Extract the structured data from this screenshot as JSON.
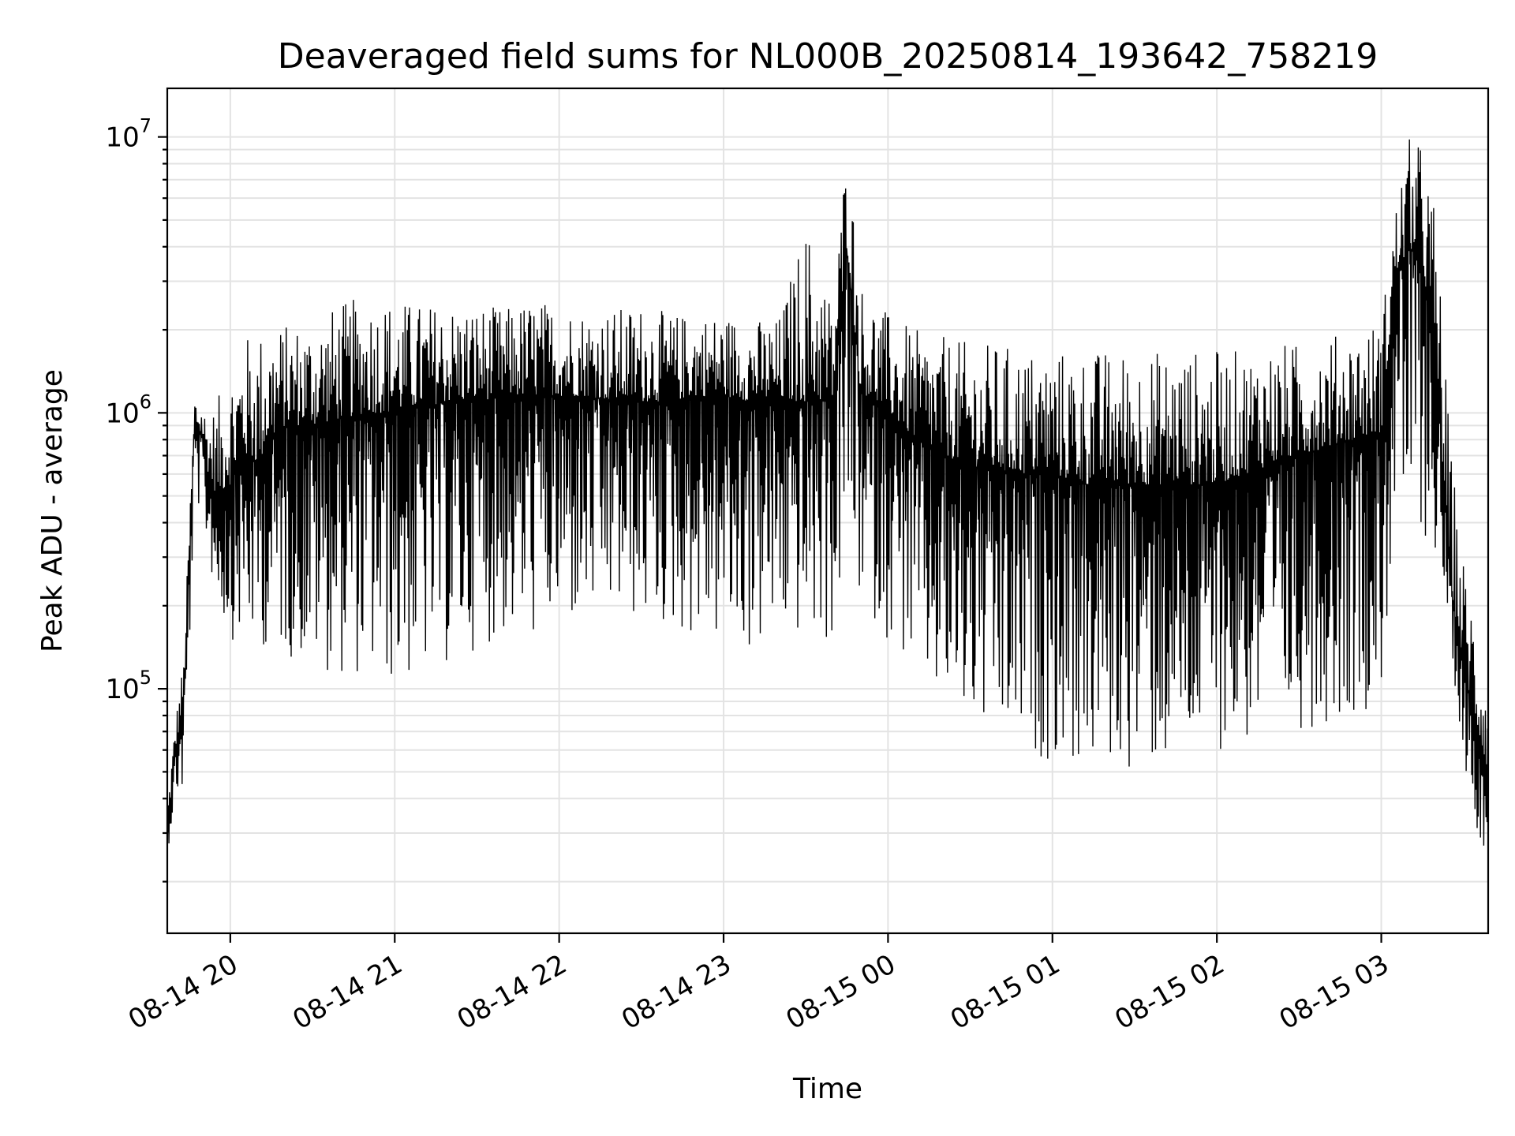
{
  "chart_data": {
    "type": "line",
    "title": "Deaveraged field sums for NL000B_20250814_193642_758219",
    "xlabel": "Time",
    "ylabel": "Peak ADU - average",
    "yscale": "log",
    "ylim": [
      13000,
      15000000
    ],
    "xlim": [
      "08-14 19:37",
      "08-15 03:39"
    ],
    "grid": true,
    "x_tick_labels": [
      "08-14 20",
      "08-14 21",
      "08-14 22",
      "08-14 23",
      "08-15 00",
      "08-15 01",
      "08-15 02",
      "08-15 03"
    ],
    "x_tick_values": [
      "08-14 20:00",
      "08-14 21:00",
      "08-14 22:00",
      "08-14 23:00",
      "08-15 00:00",
      "08-15 01:00",
      "08-15 02:00",
      "08-15 03:00"
    ],
    "y_ticks": [
      {
        "value": 100000,
        "base": "10",
        "exp": "5"
      },
      {
        "value": 1000000,
        "base": "10",
        "exp": "6"
      },
      {
        "value": 10000000,
        "base": "10",
        "exp": "7"
      }
    ],
    "series": [
      {
        "color": "#000000",
        "x": [
          "08-14 19:37",
          "08-14 19:40",
          "08-14 19:43",
          "08-14 19:45",
          "08-14 19:47",
          "08-14 19:50",
          "08-14 19:52",
          "08-14 19:55",
          "08-14 20:00",
          "08-14 20:05",
          "08-14 20:10",
          "08-14 20:15",
          "08-14 20:20",
          "08-14 20:30",
          "08-14 20:40",
          "08-14 20:50",
          "08-14 21:00",
          "08-14 21:10",
          "08-14 21:20",
          "08-14 21:30",
          "08-14 21:40",
          "08-14 21:50",
          "08-14 22:00",
          "08-14 22:10",
          "08-14 22:20",
          "08-14 22:30",
          "08-14 22:40",
          "08-14 22:50",
          "08-14 23:00",
          "08-14 23:10",
          "08-14 23:20",
          "08-14 23:30",
          "08-14 23:40",
          "08-14 23:45",
          "08-14 23:50",
          "08-15 00:00",
          "08-15 00:10",
          "08-15 00:20",
          "08-15 00:30",
          "08-15 00:40",
          "08-15 00:50",
          "08-15 01:00",
          "08-15 01:10",
          "08-15 01:20",
          "08-15 01:30",
          "08-15 01:40",
          "08-15 01:50",
          "08-15 02:00",
          "08-15 02:10",
          "08-15 02:20",
          "08-15 02:30",
          "08-15 02:40",
          "08-15 02:50",
          "08-15 03:00",
          "08-15 03:05",
          "08-15 03:10",
          "08-15 03:15",
          "08-15 03:20",
          "08-15 03:25",
          "08-15 03:30",
          "08-15 03:35",
          "08-15 03:39"
        ],
        "y": [
          30000,
          60000,
          90000,
          300000,
          900000,
          800000,
          600000,
          500000,
          550000,
          700000,
          650000,
          800000,
          900000,
          900000,
          950000,
          1000000,
          1000000,
          1050000,
          1100000,
          1100000,
          1150000,
          1150000,
          1150000,
          1150000,
          1100000,
          1100000,
          1100000,
          1150000,
          1150000,
          1100000,
          1100000,
          1100000,
          1100000,
          4000000,
          1200000,
          1000000,
          800000,
          700000,
          650000,
          600000,
          600000,
          600000,
          550000,
          550000,
          550000,
          550000,
          550000,
          550000,
          600000,
          650000,
          700000,
          750000,
          800000,
          850000,
          3000000,
          4000000,
          3500000,
          1500000,
          250000,
          120000,
          70000,
          50000
        ],
        "max": [
          40000,
          80000,
          130000,
          400000,
          1200000,
          1100000,
          1000000,
          1100000,
          1500000,
          1900000,
          2000000,
          2100000,
          2100000,
          2200000,
          2500000,
          2700000,
          2600000,
          2500000,
          2500000,
          2500000,
          2400000,
          2600000,
          2500000,
          2400000,
          2400000,
          2500000,
          2300000,
          2300000,
          2300000,
          2200000,
          2200000,
          5000000,
          2500000,
          10000000,
          3000000,
          2300000,
          2000000,
          1900000,
          1800000,
          1800000,
          1700000,
          1700000,
          1700000,
          1700000,
          1700000,
          1700000,
          1700000,
          1700000,
          1700000,
          1800000,
          1800000,
          1900000,
          2000000,
          2200000,
          5500000,
          10000000,
          9500000,
          5500000,
          800000,
          300000,
          180000,
          120000
        ],
        "min": [
          25000,
          40000,
          40000,
          120000,
          500000,
          400000,
          300000,
          200000,
          150000,
          150000,
          140000,
          140000,
          130000,
          120000,
          110000,
          110000,
          100000,
          110000,
          120000,
          140000,
          150000,
          150000,
          160000,
          170000,
          180000,
          170000,
          160000,
          150000,
          140000,
          130000,
          150000,
          150000,
          140000,
          300000,
          200000,
          150000,
          110000,
          80000,
          70000,
          60000,
          55000,
          55000,
          50000,
          50000,
          50000,
          50000,
          55000,
          60000,
          60000,
          65000,
          70000,
          75000,
          80000,
          90000,
          400000,
          350000,
          350000,
          300000,
          150000,
          55000,
          30000,
          25000
        ]
      }
    ]
  }
}
